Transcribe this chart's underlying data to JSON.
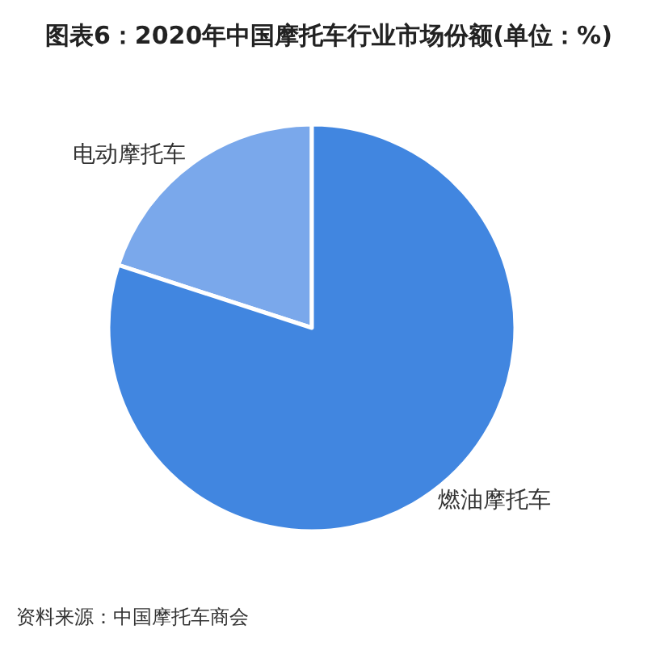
{
  "chart_data": {
    "type": "pie",
    "title": "图表6：2020年中国摩托车行业市场份额(单位：%)",
    "categories": [
      "电动摩托车",
      "燃油摩托车"
    ],
    "values": [
      20,
      80
    ],
    "colors": [
      "#7aa8eb",
      "#4186e0"
    ],
    "annotations": [
      "资料来源：中国摩托车商会"
    ]
  }
}
